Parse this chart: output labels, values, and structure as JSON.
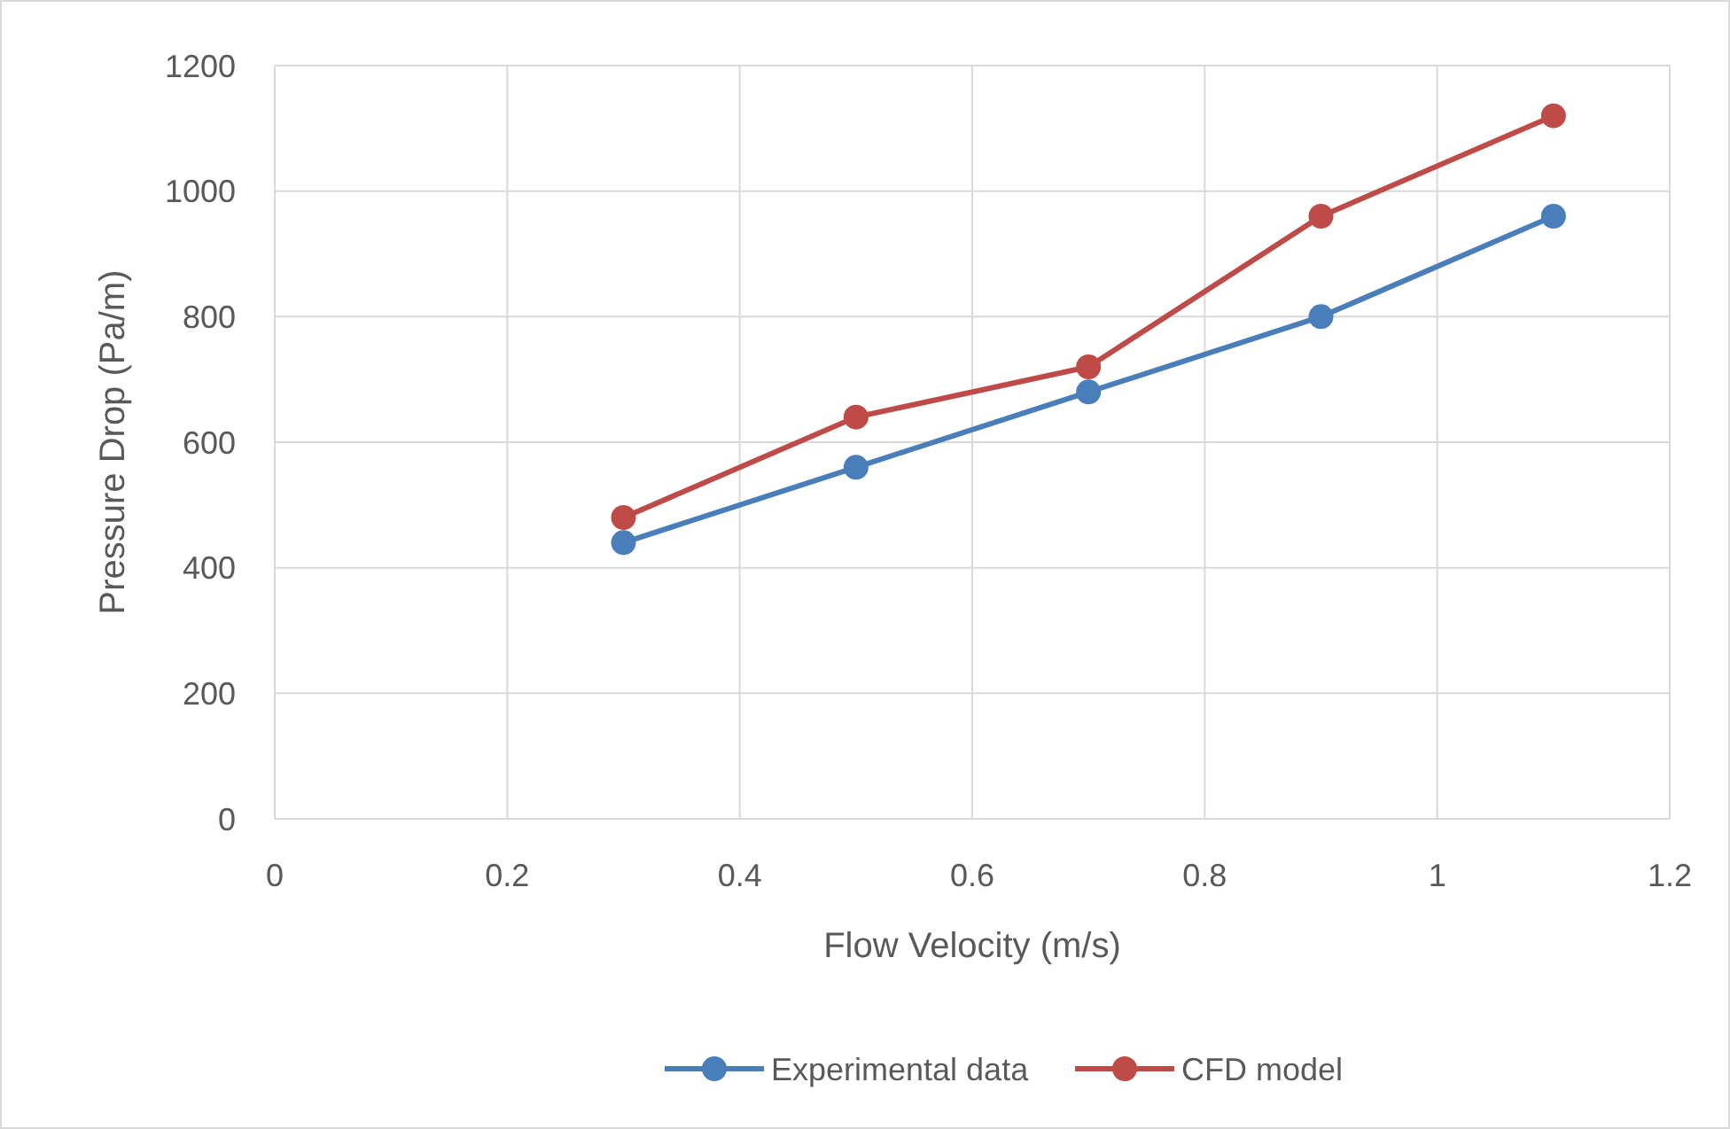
{
  "chart_data": {
    "type": "line",
    "xlabel": "Flow Velocity (m/s)",
    "ylabel": "Pressure Drop (Pa/m)",
    "x": [
      0.3,
      0.5,
      0.7,
      0.9,
      1.1
    ],
    "series": [
      {
        "name": "Experimental data",
        "color": "#4a7ebb",
        "values": [
          440,
          560,
          680,
          800,
          960
        ]
      },
      {
        "name": "CFD model",
        "color": "#be4b48",
        "values": [
          480,
          640,
          720,
          960,
          1120
        ]
      }
    ],
    "xlim": [
      0,
      1.2
    ],
    "xticks": [
      0,
      0.2,
      0.4,
      0.6,
      0.8,
      1,
      1.2
    ],
    "ylim": [
      0,
      1200
    ],
    "yticks": [
      0,
      200,
      400,
      600,
      800,
      1000,
      1200
    ],
    "grid": true,
    "legend": "bottom",
    "marker": "circle",
    "line_style": "solid"
  }
}
